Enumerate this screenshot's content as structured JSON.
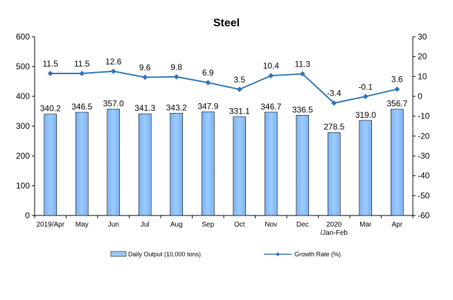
{
  "chart_data": {
    "type": "bar",
    "title": "Steel",
    "categories": [
      "2019/Apr",
      "May",
      "Jun",
      "Jul",
      "Aug",
      "Sep",
      "Oct",
      "Nov",
      "Dec",
      "2020\n/Jan-Feb",
      "Mar",
      "Apr"
    ],
    "series": [
      {
        "name": "Daily Output (10,000 tons)",
        "type": "bar",
        "axis": "left",
        "color": "#99CCFF",
        "values": [
          340.2,
          346.5,
          357.0,
          341.3,
          343.2,
          347.9,
          331.1,
          346.7,
          336.5,
          278.5,
          319.0,
          356.7
        ],
        "labels": [
          "340.2",
          "346.5",
          "357.0",
          "341.3",
          "343.2",
          "347.9",
          "331.1",
          "346.7",
          "336.5",
          "278.5",
          "319.0",
          "356.7"
        ]
      },
      {
        "name": "Growth Rate (%)",
        "type": "line",
        "axis": "right",
        "color": "#2E75B6",
        "values": [
          11.5,
          11.5,
          12.6,
          9.6,
          9.8,
          6.9,
          3.5,
          10.4,
          11.3,
          -3.4,
          -0.1,
          3.6
        ],
        "labels": [
          "11.5",
          "11.5",
          "12.6",
          "9.6",
          "9.8",
          "6.9",
          "3.5",
          "10.4",
          "11.3",
          "-3.4",
          "-0.1",
          "3.6"
        ]
      }
    ],
    "y_left": {
      "min": 0,
      "max": 600,
      "ticks": [
        "0",
        "100",
        "200",
        "300",
        "400",
        "500",
        "600"
      ]
    },
    "y_right": {
      "min": -60,
      "max": 30,
      "ticks": [
        "-60",
        "-50",
        "-40",
        "-30",
        "-20",
        "-10",
        "0",
        "10",
        "20",
        "30"
      ]
    },
    "grid": false,
    "legend_position": "bottom"
  }
}
